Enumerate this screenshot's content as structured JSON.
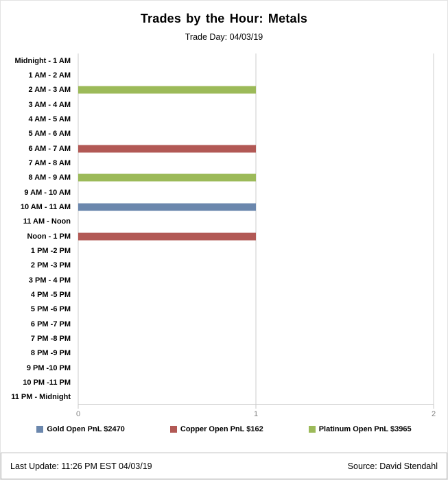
{
  "header": {
    "title": "Trades by the Hour:  Metals",
    "subtitle": "Trade Day: 04/03/19"
  },
  "chart_data": {
    "type": "bar",
    "orientation": "horizontal",
    "title": "Trades by the Hour:  Metals",
    "subtitle": "Trade Day: 04/03/19",
    "xlabel": "",
    "ylabel": "",
    "xlim": [
      0,
      2
    ],
    "xticks": [
      "0",
      "1",
      "2"
    ],
    "grid": "vertical-only",
    "legend_position": "bottom",
    "categories": [
      "Midnight - 1 AM",
      "1 AM - 2 AM",
      "2 AM - 3 AM",
      "3 AM - 4 AM",
      "4 AM - 5 AM",
      "5 AM - 6 AM",
      "6 AM - 7 AM",
      "7 AM - 8 AM",
      "8 AM - 9 AM",
      "9 AM - 10 AM",
      "10 AM - 11 AM",
      "11 AM - Noon",
      "Noon - 1 PM",
      "1 PM -2 PM",
      "2 PM -3 PM",
      "3 PM - 4 PM",
      "4 PM -5 PM",
      "5 PM -6 PM",
      "6 PM -7 PM",
      "7 PM -8 PM",
      "8 PM -9 PM",
      "9 PM -10 PM",
      "10 PM -11 PM",
      "11 PM - Midnight"
    ],
    "series": [
      {
        "name": "Gold Open PnL $2470",
        "color": "#6b87ad",
        "values": [
          0,
          0,
          0,
          0,
          0,
          0,
          0,
          0,
          0,
          0,
          1,
          0,
          0,
          0,
          0,
          0,
          0,
          0,
          0,
          0,
          0,
          0,
          0,
          0
        ]
      },
      {
        "name": "Copper Open PnL $162",
        "color": "#b25955",
        "values": [
          0,
          0,
          0,
          0,
          0,
          0,
          1,
          0,
          0,
          0,
          0,
          0,
          1,
          0,
          0,
          0,
          0,
          0,
          0,
          0,
          0,
          0,
          0,
          0
        ]
      },
      {
        "name": "Platinum Open PnL $3965",
        "color": "#9cba59",
        "values": [
          0,
          0,
          1,
          0,
          0,
          0,
          0,
          0,
          1,
          0,
          0,
          0,
          0,
          0,
          0,
          0,
          0,
          0,
          0,
          0,
          0,
          0,
          0,
          0
        ]
      }
    ]
  },
  "footer": {
    "last_update": "Last Update: 11:26 PM EST  04/03/19",
    "source": "Source: David Stendahl"
  }
}
